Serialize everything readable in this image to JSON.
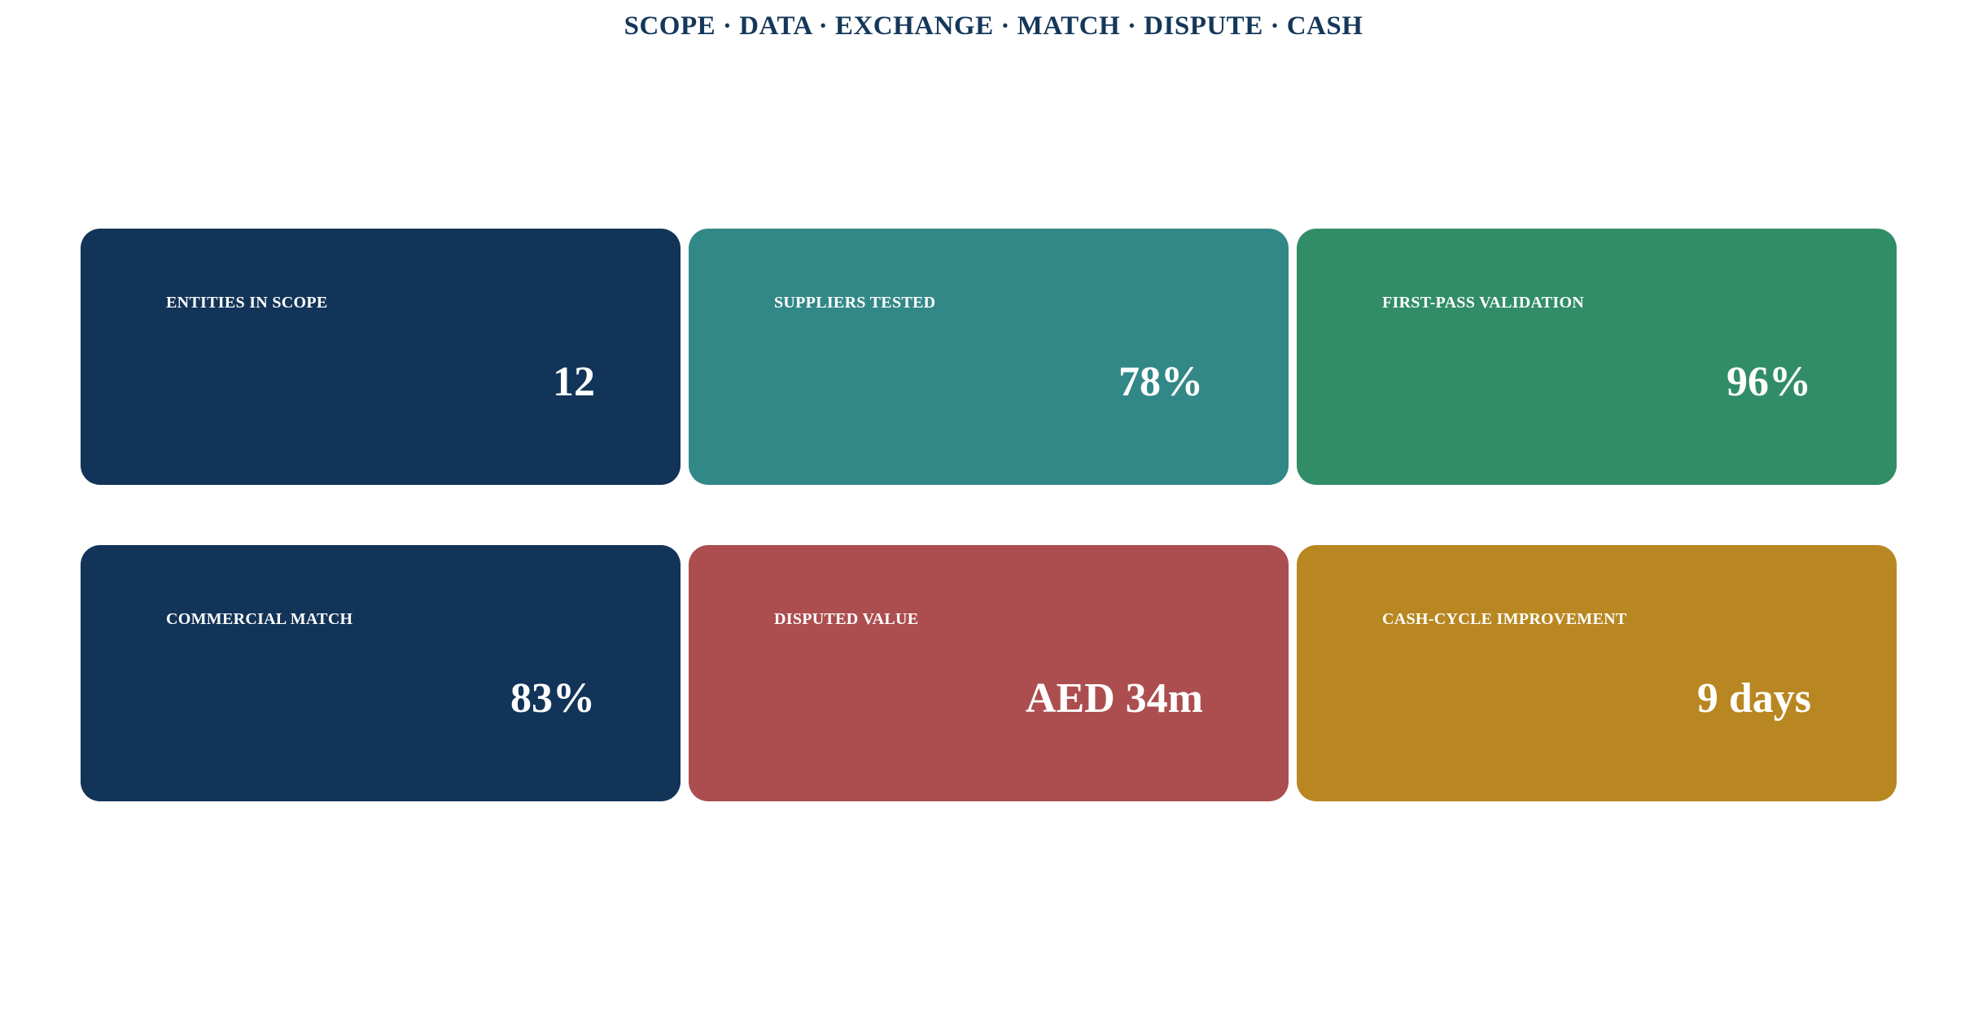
{
  "header": {
    "title": "SCOPE · DATA · EXCHANGE · MATCH · DISPUTE · CASH"
  },
  "kpis": [
    {
      "label": "ENTITIES IN SCOPE",
      "value": "12",
      "color": "#133459"
    },
    {
      "label": "SUPPLIERS TESTED",
      "value": "78%",
      "color": "#328887"
    },
    {
      "label": "FIRST-PASS VALIDATION",
      "value": "96%",
      "color": "#318d67"
    },
    {
      "label": "COMMERCIAL MATCH",
      "value": "83%",
      "color": "#133459"
    },
    {
      "label": "DISPUTED VALUE",
      "value": "AED 34m",
      "color": "#ac4e50"
    },
    {
      "label": "CASH-CYCLE IMPROVEMENT",
      "value": "9 days",
      "color": "#b88721"
    }
  ]
}
